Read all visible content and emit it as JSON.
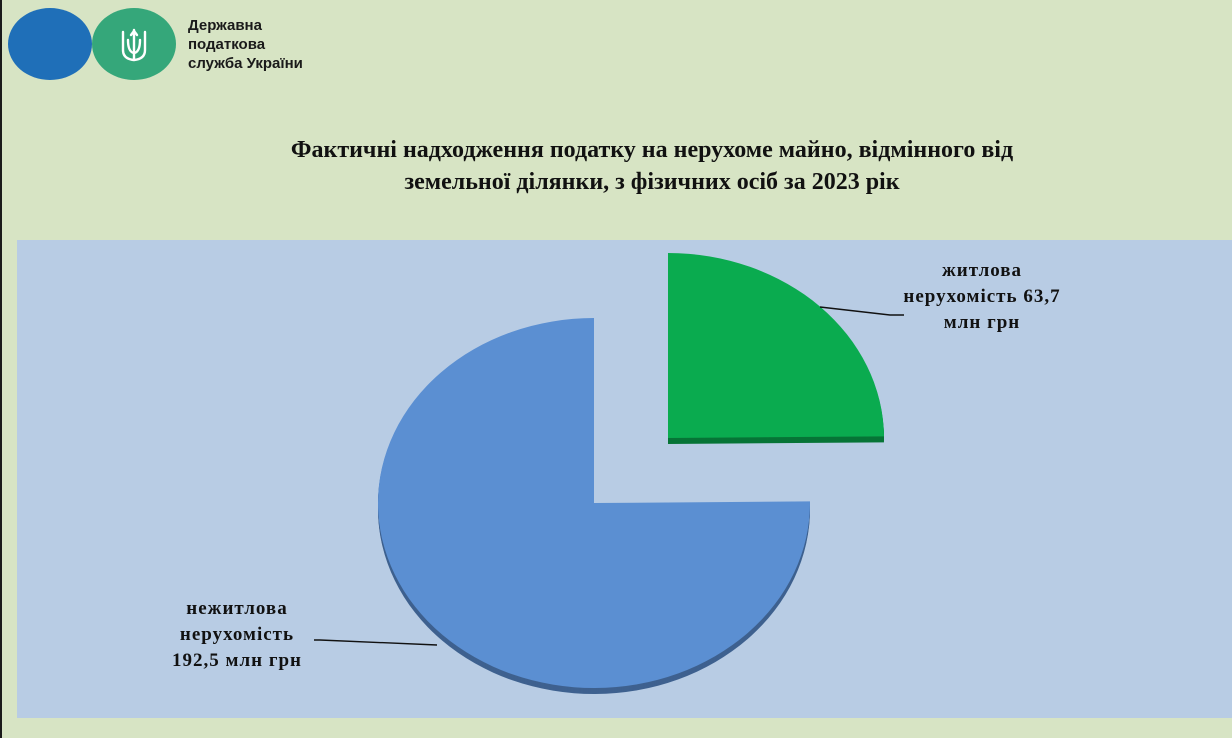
{
  "header": {
    "org_name_lines": [
      "Державна",
      "податкова",
      "служба України"
    ]
  },
  "title_lines": [
    "Фактичні надходження податку на  нерухоме майно, відмінного від",
    "земельної ділянки, з фізичних осіб за 2023 рік"
  ],
  "colors": {
    "background": "#d7e4c4",
    "plot_area": "#b8cce4",
    "logo_blue": "#1f6fb8",
    "logo_green": "#35a77a"
  },
  "icons": {
    "logo": "trident-emblem-icon"
  },
  "chart_data": {
    "type": "pie",
    "title": "Фактичні надходження податку на  нерухоме майно, відмінного від земельної ділянки, з фізичних осіб за 2023 рік",
    "exploded": true,
    "style": "3d",
    "slices": [
      {
        "category": "житлова нерухомість",
        "value": 63.7,
        "unit": "млн грн",
        "color": "#0aab4f",
        "label_lines": [
          "житлова",
          "нерухомість 63,7",
          "млн грн"
        ]
      },
      {
        "category": "нежитлова нерухомість",
        "value": 192.5,
        "unit": "млн грн",
        "color": "#5b8fd2",
        "label_lines": [
          "нежитлова",
          "нерухомість",
          "192,5 млн грн"
        ]
      }
    ]
  }
}
